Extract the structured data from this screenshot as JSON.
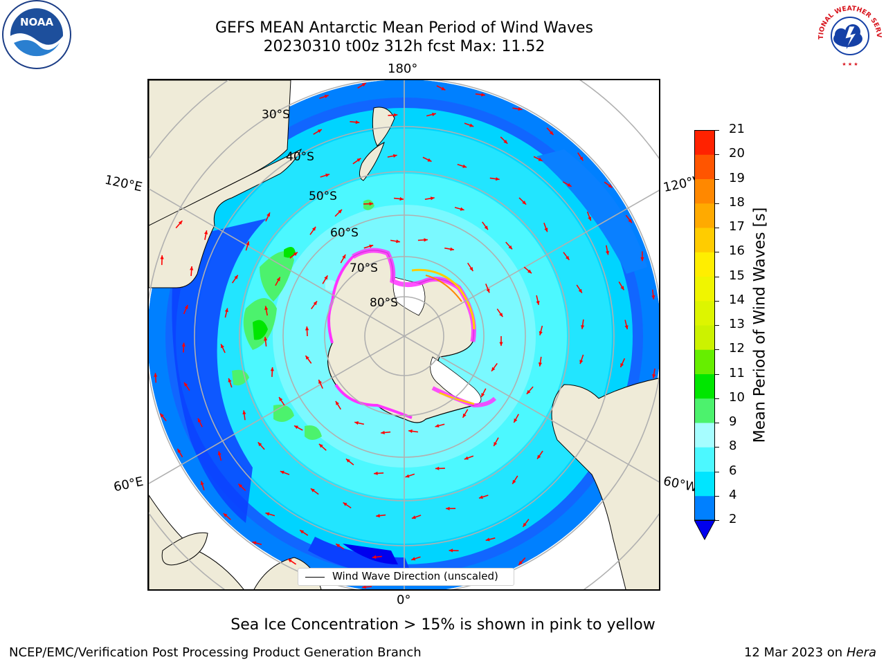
{
  "title": {
    "line1": "GEFS MEAN Antarctic Mean Period of Wind Waves",
    "line2": "20230310 t00z 312h fcst   Max: 11.52"
  },
  "map": {
    "projection": "south-polar-stereographic",
    "longitude_labels": {
      "top": "180°",
      "bottom": "0°",
      "upper_left": "120°E",
      "upper_right": "120°W",
      "lower_left": "60°E",
      "lower_right": "60°W"
    },
    "latitude_labels": [
      "30°S",
      "40°S",
      "50°S",
      "60°S",
      "70°S",
      "80°S"
    ],
    "legend": "Wind Wave Direction (unscaled)",
    "arrow_color": "#ff0000",
    "land_color": "#efebd8",
    "sea_ice_colors": [
      "#ff33ff",
      "#ffff00"
    ]
  },
  "colorbar": {
    "label": "Mean Period of Wind Waves [s]",
    "ticks": [
      "2",
      "4",
      "6",
      "8",
      "9",
      "10",
      "11",
      "12",
      "13",
      "14",
      "15",
      "16",
      "17",
      "18",
      "19",
      "20",
      "21"
    ],
    "colors": [
      "#0080ff",
      "#00e5ff",
      "#4cf8ff",
      "#a6fdff",
      "#4cf26d",
      "#00e600",
      "#66ee00",
      "#ccf200",
      "#ddf500",
      "#f0f500",
      "#ffee00",
      "#ffcc00",
      "#ffaa00",
      "#ff8800",
      "#ff5500",
      "#ff2200"
    ],
    "extend_low_color": "#0000ee"
  },
  "footnote": "Sea Ice Concentration > 15% is shown in pink to yellow",
  "credit": "NCEP/EMC/Verification Post Processing Product Generation Branch",
  "stamp": {
    "date": "12 Mar 2023 on",
    "machine": "Hera"
  },
  "logos": {
    "left": "NOAA",
    "right": "NATIONAL WEATHER SERVICE"
  }
}
